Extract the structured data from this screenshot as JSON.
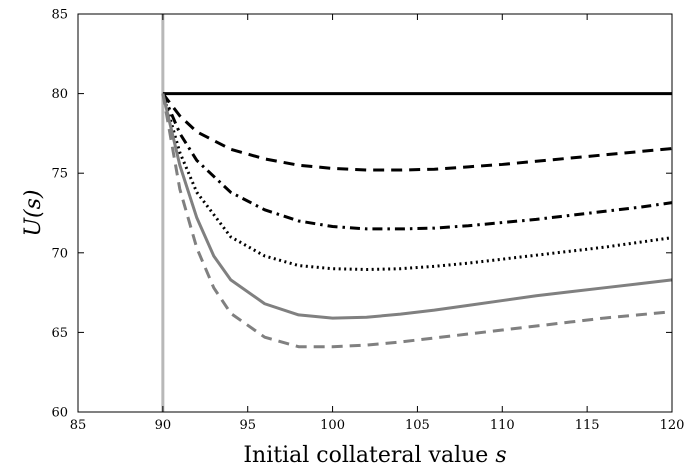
{
  "chart_data": {
    "type": "line",
    "title": "",
    "xlabel": "Initial collateral value",
    "xlabel_var": "s",
    "ylabel": "U(s)",
    "xlim": [
      85,
      120
    ],
    "ylim": [
      60,
      85
    ],
    "xticks": [
      85,
      90,
      95,
      100,
      105,
      110,
      115,
      120
    ],
    "yticks": [
      60,
      65,
      70,
      75,
      80,
      85
    ],
    "grid": false,
    "legend": "none",
    "vline": {
      "x": 90,
      "color": "#b8b8b8"
    },
    "series": [
      {
        "style": "solid",
        "color": "#000000",
        "x": [
          90,
          120
        ],
        "y": [
          80,
          80
        ]
      },
      {
        "style": "dashed",
        "color": "#000000",
        "x": [
          90,
          91,
          92,
          94,
          96,
          98,
          100,
          102,
          104,
          106,
          108,
          110,
          112,
          114,
          116,
          118,
          120
        ],
        "y": [
          80,
          78.6,
          77.6,
          76.5,
          75.9,
          75.5,
          75.3,
          75.2,
          75.2,
          75.25,
          75.4,
          75.55,
          75.75,
          75.95,
          76.15,
          76.35,
          76.55
        ]
      },
      {
        "style": "dashdot",
        "color": "#000000",
        "x": [
          90,
          91,
          92,
          94,
          96,
          98,
          100,
          102,
          104,
          106,
          108,
          110,
          112,
          114,
          116,
          118,
          120
        ],
        "y": [
          80,
          77.5,
          75.8,
          73.8,
          72.7,
          72.0,
          71.65,
          71.5,
          71.5,
          71.55,
          71.7,
          71.9,
          72.1,
          72.35,
          72.6,
          72.85,
          73.15
        ]
      },
      {
        "style": "dotted",
        "color": "#000000",
        "x": [
          90,
          91,
          92,
          94,
          96,
          98,
          100,
          102,
          104,
          106,
          108,
          110,
          112,
          114,
          116,
          118,
          120
        ],
        "y": [
          80,
          76.3,
          73.8,
          71.0,
          69.8,
          69.2,
          69.0,
          68.95,
          69.0,
          69.15,
          69.35,
          69.6,
          69.85,
          70.1,
          70.35,
          70.65,
          70.95
        ]
      },
      {
        "style": "solid",
        "color": "#808080",
        "x": [
          90,
          91,
          92,
          93,
          94,
          96,
          98,
          100,
          102,
          104,
          106,
          108,
          110,
          112,
          114,
          116,
          118,
          120
        ],
        "y": [
          80,
          75.5,
          72.2,
          69.8,
          68.3,
          66.8,
          66.1,
          65.9,
          65.95,
          66.15,
          66.4,
          66.7,
          67.0,
          67.3,
          67.55,
          67.8,
          68.05,
          68.3
        ]
      },
      {
        "style": "dashed",
        "color": "#808080",
        "x": [
          90,
          91,
          92,
          93,
          94,
          96,
          98,
          100,
          102,
          104,
          106,
          108,
          110,
          112,
          114,
          116,
          118,
          120
        ],
        "y": [
          80,
          74.0,
          70.3,
          67.8,
          66.2,
          64.7,
          64.1,
          64.1,
          64.2,
          64.4,
          64.65,
          64.9,
          65.15,
          65.4,
          65.65,
          65.9,
          66.1,
          66.3
        ]
      }
    ]
  }
}
